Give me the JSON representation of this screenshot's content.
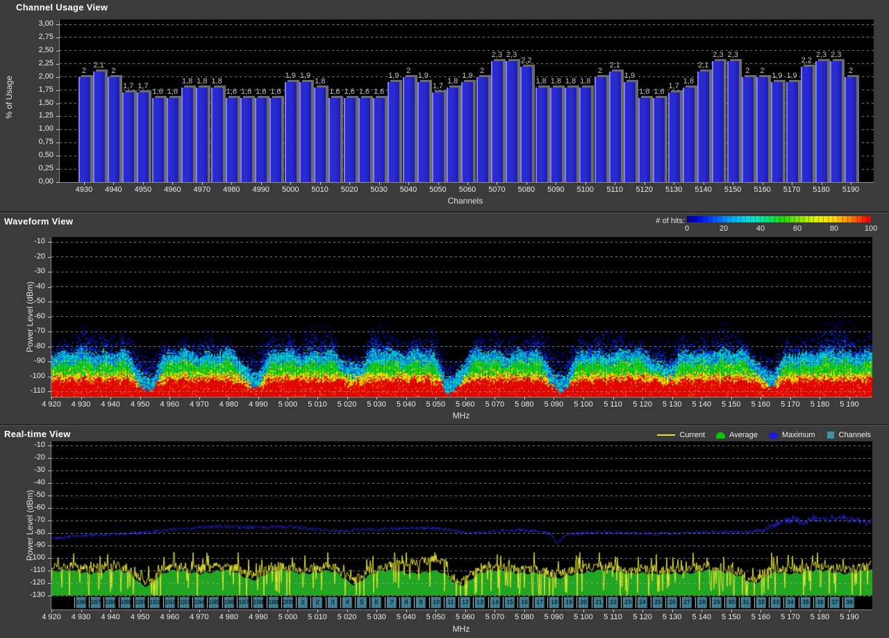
{
  "colors": {
    "background": "#3b3b3b",
    "plot_background": "#000000",
    "bar_blue": "#2a2ad2",
    "bar_shadow_gray": "#6b6b6b",
    "trace_current_yellow": "#e6e630",
    "trace_average_green": "#22a522",
    "trace_maximum_blue": "#2424dd",
    "channel_box_teal": "#478ba0",
    "grid_gray": "#9d9d9d"
  },
  "panels": {
    "channel_usage": {
      "title": "Channel Usage View",
      "ylabel": "% of Usage",
      "xlabel": "Channels",
      "y_ticks": [
        "3,00",
        "2,75",
        "2,50",
        "2,25",
        "2,00",
        "1,75",
        "1,50",
        "1,25",
        "1,00",
        "0,75",
        "0,50",
        "0,25",
        "0,00"
      ],
      "x_ticks": [
        "4930",
        "4940",
        "4950",
        "4960",
        "4970",
        "4980",
        "4990",
        "5000",
        "5010",
        "5020",
        "5030",
        "5040",
        "5050",
        "5060",
        "5070",
        "5080",
        "5090",
        "5100",
        "5110",
        "5120",
        "5130",
        "5140",
        "5150",
        "5160",
        "5170",
        "5180",
        "5190"
      ]
    },
    "waveform": {
      "title": "Waveform View",
      "ylabel": "Power Level (dBm)",
      "xlabel": "MHz",
      "colorbar_label": "# of hits:",
      "colorbar_ticks": [
        "0",
        "20",
        "40",
        "60",
        "80",
        "100"
      ],
      "y_ticks": [
        "-10",
        "-20",
        "-30",
        "-40",
        "-50",
        "-60",
        "-70",
        "-80",
        "-90",
        "-100",
        "-110"
      ],
      "x_ticks": [
        "4 920",
        "4 930",
        "4 940",
        "4 950",
        "4 960",
        "4 970",
        "4 980",
        "4 990",
        "5 000",
        "5 010",
        "5 020",
        "5 030",
        "5 040",
        "5 050",
        "5 060",
        "5 070",
        "5 080",
        "5 090",
        "5 100",
        "5 110",
        "5 120",
        "5 130",
        "5 140",
        "5 150",
        "5 160",
        "5 170",
        "5 180",
        "5 190"
      ]
    },
    "realtime": {
      "title": "Real-time View",
      "ylabel": "Power Level (dBm)",
      "xlabel": "MHz",
      "legend": [
        {
          "label": "Current",
          "color": "#e6e630",
          "icon": "line"
        },
        {
          "label": "Average",
          "color": "#00cc00",
          "icon": "area"
        },
        {
          "label": "Maximum",
          "color": "#1a1ae0",
          "icon": "area"
        },
        {
          "label": "Channels",
          "color": "#4a8c9c",
          "icon": "square"
        }
      ],
      "y_ticks": [
        "-10",
        "-20",
        "-30",
        "-40",
        "-50",
        "-60",
        "-70",
        "-80",
        "-90",
        "-100",
        "-110",
        "-120",
        "-130"
      ],
      "x_ticks": [
        "4 920",
        "4 930",
        "4 940",
        "4 950",
        "4 960",
        "4 970",
        "4 980",
        "4 990",
        "5 000",
        "5 010",
        "5 020",
        "5 030",
        "5 040",
        "5 050",
        "5 060",
        "5 070",
        "5 080",
        "5 090",
        "5 100",
        "5 110",
        "5 120",
        "5 130",
        "5 140",
        "5 150",
        "5 160",
        "5 170",
        "5 180",
        "5 190"
      ]
    }
  },
  "chart_data": [
    {
      "type": "bar",
      "title": "Channel Usage View",
      "xlabel": "Channels",
      "ylabel": "% of Usage",
      "ylim": [
        0,
        3.0
      ],
      "categories": [
        4930,
        4935,
        4940,
        4945,
        4950,
        4955,
        4960,
        4965,
        4970,
        4975,
        4980,
        4985,
        4990,
        4995,
        5000,
        5005,
        5010,
        5015,
        5020,
        5025,
        5030,
        5035,
        5040,
        5045,
        5050,
        5055,
        5060,
        5065,
        5070,
        5075,
        5080,
        5085,
        5090,
        5095,
        5100,
        5105,
        5110,
        5115,
        5120,
        5125,
        5130,
        5135,
        5140,
        5145,
        5150,
        5155,
        5160,
        5165,
        5170,
        5175,
        5180,
        5185,
        5190
      ],
      "values": [
        2,
        2.1,
        2,
        1.7,
        1.7,
        1.6,
        1.6,
        1.8,
        1.8,
        1.8,
        1.6,
        1.6,
        1.6,
        1.6,
        1.9,
        1.9,
        1.8,
        1.6,
        1.6,
        1.6,
        1.6,
        1.9,
        2,
        1.9,
        1.7,
        1.8,
        1.9,
        2,
        2.3,
        2.3,
        2.2,
        1.8,
        1.8,
        1.8,
        1.8,
        2,
        2.1,
        1.9,
        1.6,
        1.6,
        1.7,
        1.8,
        2.1,
        2.3,
        2.3,
        2,
        2,
        1.9,
        1.9,
        2.2,
        2.3,
        2.3,
        2
      ],
      "value_labels": [
        "2",
        "2,1",
        "2",
        "1,7",
        "1,7",
        "1,6",
        "1,6",
        "1,8",
        "1,8",
        "1,8",
        "1,6",
        "1,6",
        "1,6",
        "1,6",
        "1,9",
        "1,9",
        "1,8",
        "1,6",
        "1,6",
        "1,6",
        "1,6",
        "1,9",
        "2",
        "1,9",
        "1,7",
        "1,8",
        "1,9",
        "2",
        "2,3",
        "2,3",
        "2,2",
        "1,8",
        "1,8",
        "1,8",
        "1,8",
        "2",
        "2,1",
        "1,9",
        "1,6",
        "1,6",
        "1,7",
        "1,8",
        "2,1",
        "2,3",
        "2,3",
        "2",
        "2",
        "1,9",
        "1,9",
        "2,2",
        "2,3",
        "2,3",
        "2"
      ]
    },
    {
      "type": "heatmap",
      "title": "Waveform View",
      "xlabel": "MHz",
      "ylabel": "Power Level (dBm)",
      "x_range_mhz": [
        4920,
        5198
      ],
      "y_range_dbm": [
        -113.5,
        -10
      ],
      "colorbar": {
        "label": "# of hits:",
        "min": 0,
        "max": 100,
        "colormap": "jet"
      },
      "band_levels_dbm": {
        "blue_speckle_top": -68,
        "cyan_top": -83.5,
        "green_top": -90.5,
        "yellow_top": -98,
        "red_top": -101.5
      },
      "notches_mhz_depth": [
        [
          4952,
          1.0
        ],
        [
          4988,
          0.8
        ],
        [
          5022,
          0.5
        ],
        [
          5055,
          1.0
        ],
        [
          5092,
          1.0
        ],
        [
          5128,
          0.5
        ],
        [
          5163,
          0.8
        ]
      ],
      "notch_depth_db": 17
    },
    {
      "type": "line",
      "title": "Real-time View",
      "xlabel": "MHz",
      "ylabel": "Power Level (dBm)",
      "ylim": [
        -130,
        -10
      ],
      "series": [
        {
          "name": "Maximum",
          "x": [
            4920,
            4928,
            4936,
            4944,
            4952,
            4960,
            4968,
            4976,
            4984,
            4992,
            5000,
            5008,
            5016,
            5024,
            5032,
            5040,
            5048,
            5056,
            5062,
            5068,
            5076,
            5084,
            5089,
            5091,
            5094,
            5100,
            5108,
            5116,
            5124,
            5132,
            5140,
            5148,
            5156,
            5161,
            5166,
            5170,
            5174,
            5178,
            5182,
            5186,
            5190,
            5196
          ],
          "y": [
            -84.5,
            -82.5,
            -81.5,
            -80.5,
            -79.5,
            -77.5,
            -76,
            -74.5,
            -75.5,
            -75.5,
            -75,
            -76.5,
            -78.5,
            -77.5,
            -77,
            -76,
            -76,
            -77.5,
            -80.5,
            -79,
            -77.5,
            -78.5,
            -80.5,
            -88.5,
            -81,
            -80,
            -79.5,
            -80,
            -80.5,
            -80,
            -79,
            -79.5,
            -79.5,
            -77.5,
            -72,
            -69,
            -71.5,
            -67.5,
            -69.5,
            -67,
            -69.5,
            -70.5
          ]
        },
        {
          "name": "Average",
          "base_top_dbm": -111,
          "dip_depth_db": 10,
          "notches_mhz_depth": [
            [
              4952,
              1.0
            ],
            [
              4988,
              0.5
            ],
            [
              5022,
              0.9
            ],
            [
              5058,
              1.0
            ],
            [
              5090,
              0.6
            ],
            [
              5125,
              0.3
            ],
            [
              5158,
              0.95
            ]
          ]
        },
        {
          "name": "Current",
          "description": "noisy trace around Average top",
          "spike_floor_dbm": -130,
          "spike_ceiling_dbm": -95.5,
          "elevated_region_mhz": [
            5036,
            5054
          ]
        }
      ],
      "channel_strip": {
        "start_mhz": 4927.5,
        "channel_width_mhz": 5,
        "labels": [
          "186",
          "187",
          "188",
          "189",
          "190",
          "191",
          "192",
          "193",
          "194",
          "195",
          "196",
          "197",
          "198",
          "199",
          "200",
          "1",
          "2",
          "3",
          "4",
          "5",
          "6",
          "7",
          "8",
          "9",
          "10",
          "11",
          "12",
          "13",
          "14",
          "15",
          "16",
          "17",
          "18",
          "19",
          "20",
          "21",
          "22",
          "23",
          "24",
          "25",
          "26",
          "27",
          "28",
          "29",
          "30",
          "31",
          "32",
          "33",
          "34",
          "35",
          "36",
          "37",
          "38"
        ]
      }
    }
  ]
}
